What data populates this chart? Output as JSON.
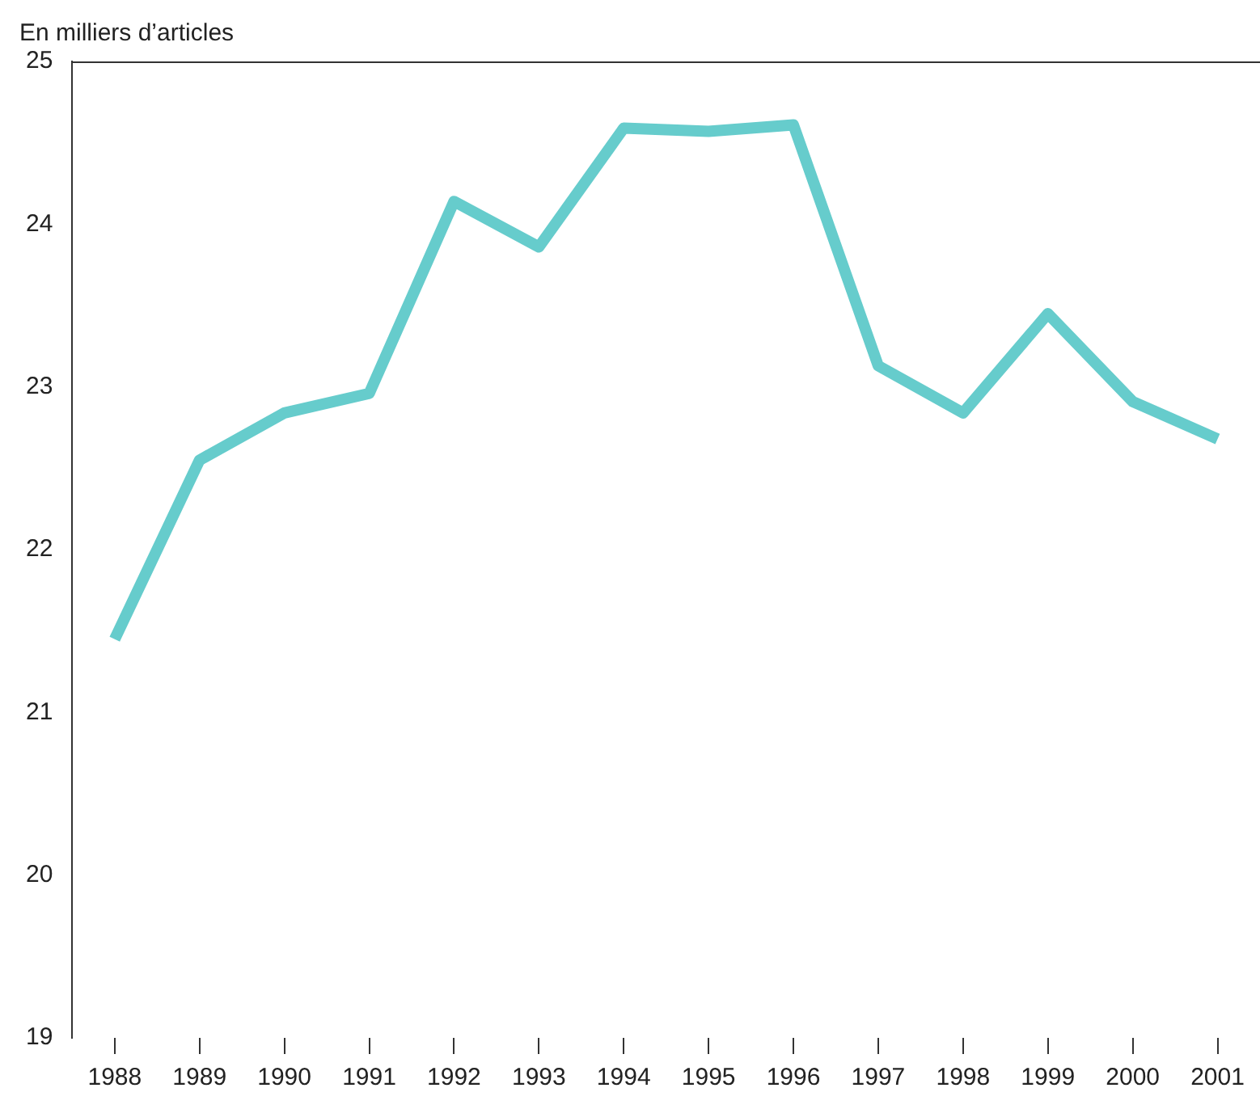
{
  "chart_data": {
    "type": "line",
    "ylabel": "En milliers d’articles",
    "categories": [
      "1988",
      "1989",
      "1990",
      "1991",
      "1992",
      "1993",
      "1994",
      "1995",
      "1996",
      "1997",
      "1998",
      "1999",
      "2000",
      "2001"
    ],
    "series": [
      {
        "color": "#66cccc",
        "values": [
          21.45,
          22.55,
          22.84,
          22.96,
          24.14,
          23.86,
          24.59,
          24.57,
          24.61,
          23.13,
          22.84,
          23.45,
          22.91,
          22.68
        ]
      }
    ],
    "ylim": [
      19,
      25
    ],
    "yticks": [
      19,
      20,
      21,
      22,
      23,
      24,
      25
    ],
    "grid": false,
    "legend": false,
    "marker": "none",
    "line_style": "solid"
  }
}
